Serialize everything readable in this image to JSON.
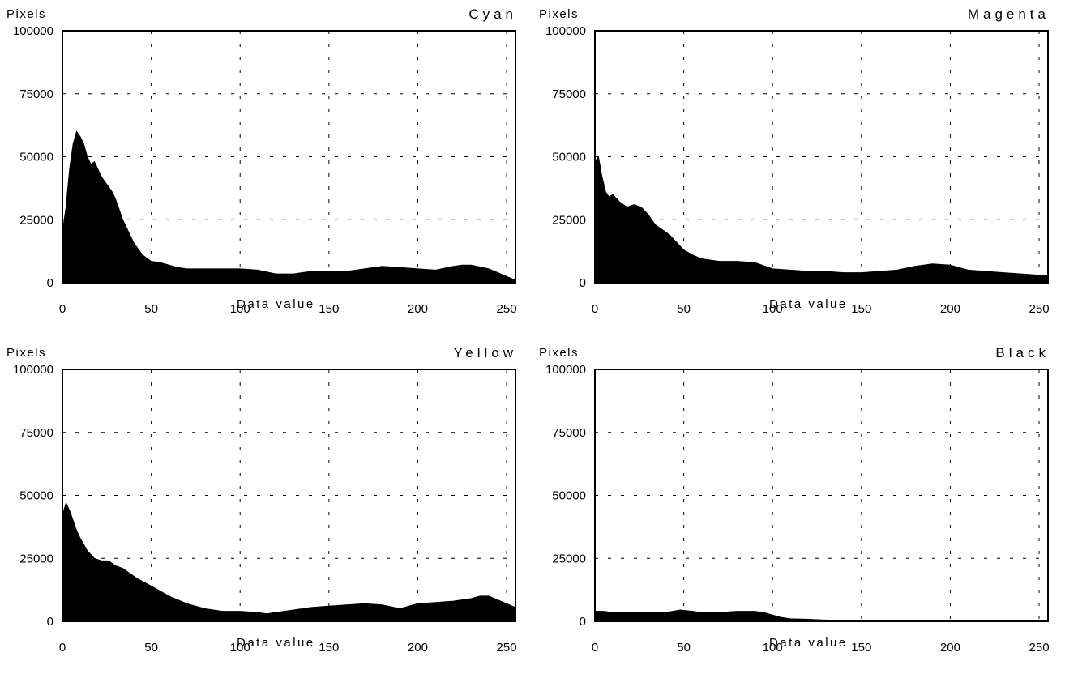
{
  "chart_data": [
    {
      "type": "area",
      "title": "Cyan",
      "xlabel": "Data value",
      "ylabel": "Pixels",
      "xlim": [
        0,
        255
      ],
      "ylim": [
        0,
        100000
      ],
      "xticks": [
        "0",
        "50",
        "100",
        "150",
        "200",
        "250"
      ],
      "yticks": [
        "0",
        "25000",
        "50000",
        "75000",
        "100000"
      ],
      "grid": true,
      "x": [
        0,
        2,
        4,
        6,
        8,
        10,
        12,
        14,
        16,
        18,
        20,
        22,
        24,
        26,
        28,
        30,
        32,
        34,
        36,
        38,
        40,
        42,
        44,
        46,
        48,
        50,
        55,
        60,
        65,
        70,
        80,
        90,
        100,
        110,
        120,
        130,
        140,
        150,
        160,
        170,
        180,
        190,
        200,
        210,
        220,
        225,
        230,
        240,
        250,
        255
      ],
      "values": [
        20000,
        30000,
        45000,
        55000,
        60000,
        58000,
        55000,
        50000,
        47000,
        48000,
        45000,
        42000,
        40000,
        38000,
        36000,
        33000,
        29000,
        25000,
        22000,
        19000,
        16000,
        14000,
        12000,
        10500,
        9500,
        8500,
        8000,
        7000,
        6000,
        5500,
        5500,
        5500,
        5500,
        5000,
        3500,
        3500,
        4500,
        4500,
        4500,
        5500,
        6500,
        6000,
        5500,
        5000,
        6500,
        7000,
        7000,
        5500,
        2500,
        1000
      ]
    },
    {
      "type": "area",
      "title": "Magenta",
      "xlabel": "Data value",
      "ylabel": "Pixels",
      "xlim": [
        0,
        255
      ],
      "ylim": [
        0,
        100000
      ],
      "xticks": [
        "0",
        "50",
        "100",
        "150",
        "200",
        "250"
      ],
      "yticks": [
        "0",
        "25000",
        "50000",
        "75000",
        "100000"
      ],
      "grid": true,
      "x": [
        0,
        2,
        4,
        6,
        8,
        10,
        14,
        18,
        22,
        26,
        30,
        34,
        38,
        42,
        46,
        50,
        55,
        60,
        70,
        80,
        90,
        100,
        110,
        120,
        130,
        140,
        150,
        160,
        170,
        180,
        190,
        200,
        210,
        220,
        230,
        240,
        250,
        255
      ],
      "values": [
        48000,
        50000,
        42000,
        36000,
        34000,
        35000,
        32000,
        30000,
        31000,
        30000,
        27000,
        23000,
        21000,
        19000,
        16000,
        13000,
        11000,
        9500,
        8500,
        8500,
        8000,
        5500,
        5000,
        4500,
        4500,
        4000,
        4000,
        4500,
        5000,
        6500,
        7500,
        7000,
        5000,
        4500,
        4000,
        3500,
        3000,
        3000
      ]
    },
    {
      "type": "area",
      "title": "Yellow",
      "xlabel": "Data value",
      "ylabel": "Pixels",
      "xlim": [
        0,
        255
      ],
      "ylim": [
        0,
        100000
      ],
      "xticks": [
        "0",
        "50",
        "100",
        "150",
        "200",
        "250"
      ],
      "yticks": [
        "0",
        "25000",
        "50000",
        "75000",
        "100000"
      ],
      "grid": true,
      "x": [
        0,
        2,
        4,
        6,
        8,
        10,
        14,
        18,
        22,
        26,
        30,
        34,
        38,
        42,
        46,
        50,
        55,
        60,
        70,
        80,
        90,
        100,
        110,
        115,
        120,
        130,
        140,
        150,
        160,
        170,
        180,
        190,
        200,
        210,
        220,
        230,
        235,
        240,
        250,
        255
      ],
      "values": [
        42000,
        47000,
        44000,
        40000,
        36000,
        33000,
        28000,
        25000,
        24000,
        24000,
        22000,
        21000,
        19000,
        17000,
        15500,
        14000,
        12000,
        10000,
        7000,
        5000,
        4000,
        4000,
        3500,
        3000,
        3500,
        4500,
        5500,
        6000,
        6500,
        7000,
        6500,
        5000,
        7000,
        7500,
        8000,
        9000,
        10000,
        10000,
        7000,
        5500
      ]
    },
    {
      "type": "area",
      "title": "Black",
      "xlabel": "Data value",
      "ylabel": "Pixels",
      "xlim": [
        0,
        255
      ],
      "ylim": [
        0,
        100000
      ],
      "xticks": [
        "0",
        "50",
        "100",
        "150",
        "200",
        "250"
      ],
      "yticks": [
        "0",
        "25000",
        "50000",
        "75000",
        "100000"
      ],
      "grid": true,
      "x": [
        0,
        5,
        10,
        20,
        30,
        40,
        48,
        55,
        60,
        70,
        80,
        90,
        95,
        100,
        105,
        110,
        120,
        130,
        140,
        150,
        160,
        170,
        180,
        200,
        220,
        240,
        255
      ],
      "values": [
        4000,
        4000,
        3500,
        3500,
        3500,
        3500,
        4500,
        4000,
        3500,
        3500,
        4000,
        4000,
        3500,
        2500,
        1500,
        1000,
        800,
        500,
        300,
        300,
        200,
        100,
        100,
        100,
        50,
        50,
        50
      ]
    }
  ]
}
